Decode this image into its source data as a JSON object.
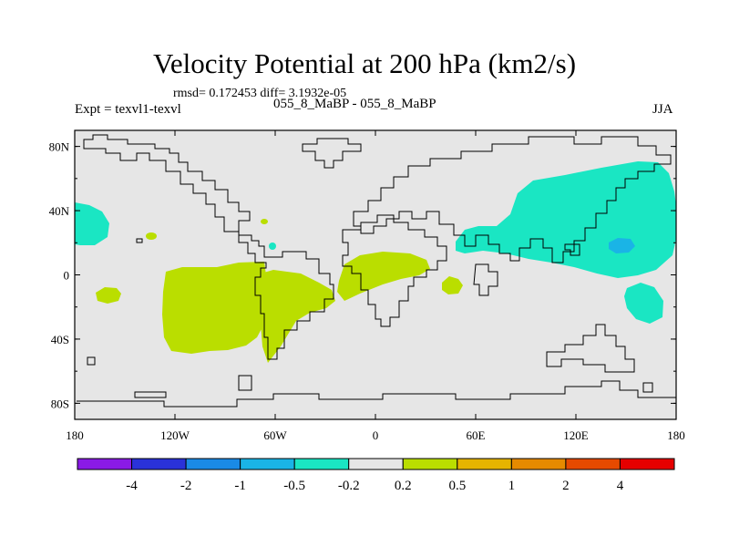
{
  "header": {
    "title": "Velocity Potential at 200 hPa (km2/s)",
    "stats": "rmsd= 0.172453 diff= 3.1932e-05",
    "experiment": "Expt = texvl1-texvl",
    "case": "055_8_MaBP - 055_8_MaBP",
    "season": "JJA"
  },
  "chart_data": {
    "type": "contour-map",
    "title": "Velocity Potential at 200 hPa (km2/s)",
    "x_range": [
      -180,
      180
    ],
    "y_range": [
      -90,
      90
    ],
    "x_ticks": [
      {
        "value": -180,
        "label": "180"
      },
      {
        "value": -120,
        "label": "120W"
      },
      {
        "value": -60,
        "label": "60W"
      },
      {
        "value": 0,
        "label": "0"
      },
      {
        "value": 60,
        "label": "60E"
      },
      {
        "value": 120,
        "label": "120E"
      },
      {
        "value": 180,
        "label": "180"
      }
    ],
    "y_ticks": [
      {
        "value": 80,
        "label": "80N"
      },
      {
        "value": 40,
        "label": "40N"
      },
      {
        "value": 0,
        "label": "0"
      },
      {
        "value": -40,
        "label": "40S"
      },
      {
        "value": -80,
        "label": "80S"
      }
    ],
    "background_color": "#e6e6e6",
    "colorbar": {
      "colors": [
        "#8a1ae6",
        "#2a32d9",
        "#1a8ae6",
        "#1ab4e6",
        "#1ae6c3",
        "#e6e6e6",
        "#bade00",
        "#e6b400",
        "#e68a00",
        "#e64a00",
        "#e60000"
      ],
      "labels": [
        "-4",
        "-2",
        "-1",
        "-0.5",
        "-0.2",
        "0.2",
        "0.5",
        "1",
        "2",
        "4"
      ]
    },
    "anomalies": [
      {
        "name": "west-pacific-positive",
        "level": "0.2 to 0.5",
        "color": "#bade00",
        "center_lon": -112,
        "center_lat": -20,
        "lon_extent": [
          -127,
          -56
        ],
        "lat_extent": [
          -50,
          2
        ]
      },
      {
        "name": "south-atlantic-positive",
        "level": "0.2 to 0.5",
        "color": "#bade00",
        "center_lon": -35,
        "center_lat": -20,
        "lon_extent": [
          -60,
          -15
        ],
        "lat_extent": [
          -55,
          5
        ]
      },
      {
        "name": "africa-arabia-positive",
        "level": "0.2 to 0.5",
        "color": "#bade00",
        "center_lon": 10,
        "center_lat": 5,
        "lon_extent": [
          -15,
          35
        ],
        "lat_extent": [
          -10,
          15
        ]
      },
      {
        "name": "indian-ocean-positive",
        "level": "0.2 to 0.5",
        "color": "#bade00",
        "center_lon": 47,
        "center_lat": -12,
        "lon_extent": [
          41,
          53
        ],
        "lat_extent": [
          -18,
          -6
        ]
      },
      {
        "name": "central-pacific-positive",
        "level": "0.2 to 0.5",
        "color": "#bade00",
        "center_lon": -163,
        "center_lat": -17,
        "lon_extent": [
          -171,
          -155
        ],
        "lat_extent": [
          -22,
          -12
        ]
      },
      {
        "name": "asia-negative",
        "level": "-0.5 to -0.2",
        "color": "#1ae6c3",
        "center_lon": 115,
        "center_lat": 30,
        "lon_extent": [
          50,
          180
        ],
        "lat_extent": [
          2,
          65
        ]
      },
      {
        "name": "north-pacific-negative",
        "level": "-0.5 to -0.2",
        "color": "#1ae6c3",
        "center_lon": -174,
        "center_lat": 31,
        "lon_extent": [
          -180,
          -163
        ],
        "lat_extent": [
          18,
          43
        ]
      },
      {
        "name": "south-pacific-negative",
        "level": "-0.5 to -0.2",
        "color": "#1ae6c3",
        "center_lon": 165,
        "center_lat": -27,
        "lon_extent": [
          152,
          175
        ],
        "lat_extent": [
          -40,
          -15
        ]
      },
      {
        "name": "east-asia-core-negative",
        "level": "-1 to -0.5",
        "color": "#1ab4e6",
        "center_lon": 149,
        "center_lat": 23,
        "lon_extent": [
          144,
          155
        ],
        "lat_extent": [
          20,
          27
        ]
      }
    ]
  }
}
